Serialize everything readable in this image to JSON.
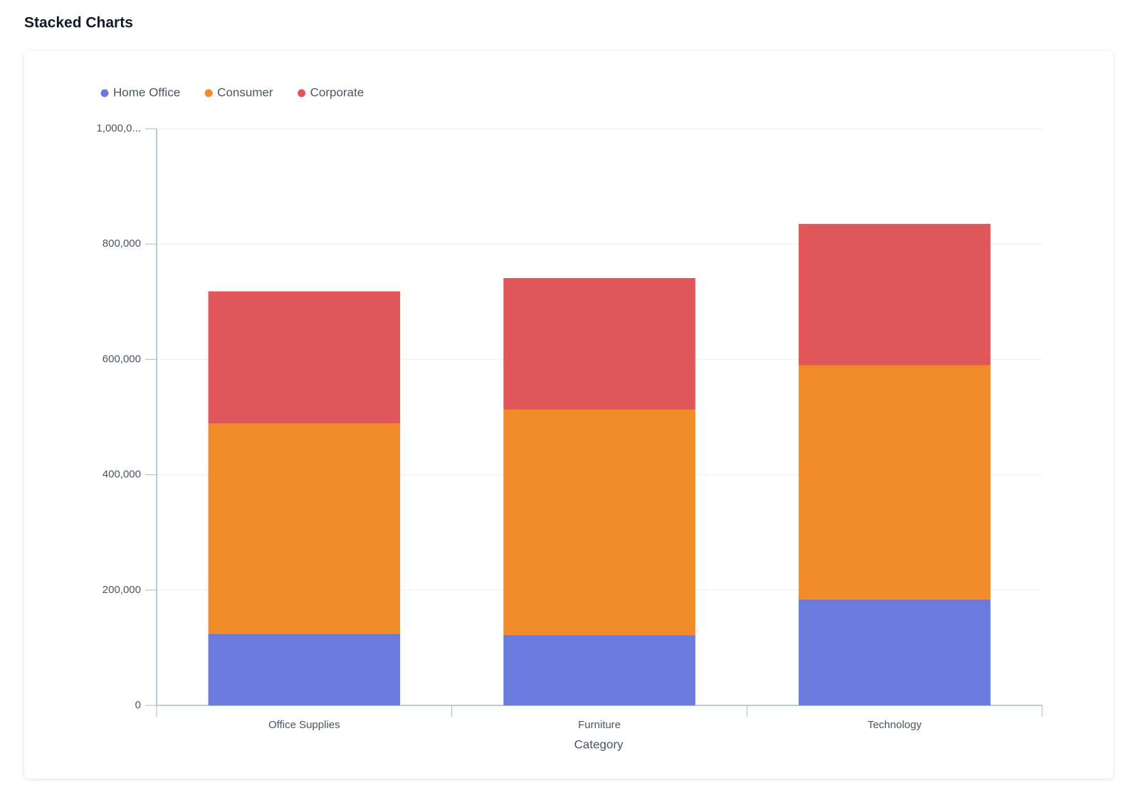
{
  "chart_data": {
    "type": "stacked-bar",
    "title": "Stacked Charts",
    "x_label": "Category",
    "categories": [
      "Office Supplies",
      "Furniture",
      "Technology"
    ],
    "series": [
      {
        "name": "Home Office",
        "color": "#6b7bdd",
        "values": [
          124000,
          122000,
          184000
        ]
      },
      {
        "name": "Consumer",
        "color": "#f08c2a",
        "values": [
          365000,
          391000,
          406000
        ]
      },
      {
        "name": "Corporate",
        "color": "#e0565b",
        "values": [
          229000,
          228000,
          245000
        ]
      }
    ],
    "ylim": [
      0,
      1000000
    ],
    "yticks": [
      0,
      {
        "value": 200000,
        "label": "200,000"
      },
      {
        "value": 400000,
        "label": "400,000"
      },
      {
        "value": 600000,
        "label": "600,000"
      },
      {
        "value": 800000,
        "label": "800,000"
      },
      {
        "value": 1000000,
        "label": "1,000,0..."
      }
    ],
    "grid": true
  }
}
